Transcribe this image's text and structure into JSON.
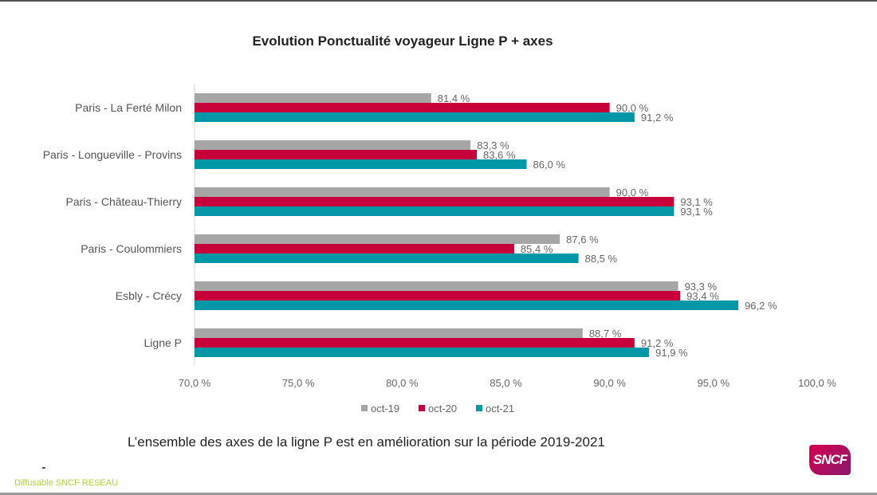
{
  "chart_data": {
    "type": "bar",
    "orientation": "horizontal",
    "title": "Evolution Ponctualité voyageur Ligne P + axes",
    "categories": [
      "Paris - La Ferté Milon",
      "Paris - Longueville - Provins",
      "Paris - Château-Thierry",
      "Paris - Coulommiers",
      "Esbly - Crécy",
      "Ligne P"
    ],
    "series": [
      {
        "name": "oct-19",
        "color": "#a6a6a6",
        "values": [
          81.4,
          83.3,
          90.0,
          87.6,
          93.3,
          88.7
        ],
        "labels": [
          "81,4 %",
          "83,3 %",
          "90,0 %",
          "87,6 %",
          "93,3 %",
          "88,7 %"
        ]
      },
      {
        "name": "oct-20",
        "color": "#c8003a",
        "values": [
          90.0,
          83.6,
          93.1,
          85.4,
          93.4,
          91.2
        ],
        "labels": [
          "90,0 %",
          "83,6 %",
          "93,1 %",
          "85,4 %",
          "93,4 %",
          "91,2 %"
        ]
      },
      {
        "name": "oct-21",
        "color": "#0097a7",
        "values": [
          91.2,
          86.0,
          93.1,
          88.5,
          96.2,
          91.9
        ],
        "labels": [
          "91,2 %",
          "86,0 %",
          "93,1 %",
          "88,5 %",
          "96,2 %",
          "91,9 %"
        ]
      }
    ],
    "xlim": [
      70,
      100
    ],
    "xticks": [
      70,
      75,
      80,
      85,
      90,
      95,
      100
    ],
    "xtick_labels": [
      "70,0 %",
      "75,0 %",
      "80,0 %",
      "85,0 %",
      "90,0 %",
      "95,0 %",
      "100,0 %"
    ],
    "xlabel": "",
    "ylabel": "",
    "grid": false,
    "legend_position": "bottom"
  },
  "caption": "L’ensemble des axes de la ligne P est en amélioration sur la période 2019-2021",
  "footer": "Diffusable SNCF RESEAU",
  "logo_text": "SNCF"
}
